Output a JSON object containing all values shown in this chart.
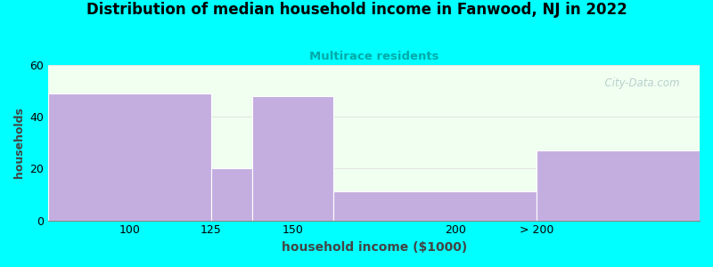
{
  "title": "Distribution of median household income in Fanwood, NJ in 2022",
  "subtitle": "Multirace residents",
  "xlabel": "household income ($1000)",
  "ylabel": "households",
  "bar_edges": [
    75,
    125,
    137.5,
    162.5,
    225,
    275
  ],
  "values": [
    49,
    20,
    48,
    11,
    27
  ],
  "xtick_positions": [
    100,
    125,
    150,
    200,
    225
  ],
  "xtick_labels": [
    "100",
    "125",
    "150",
    "200",
    "> 200"
  ],
  "bar_color": "#c4aee0",
  "bar_edge_color": "#c4aee0",
  "background_color": "#00ffff",
  "plot_bg_top": "#f0fff0",
  "plot_bg_bottom": "#ffffff",
  "subtitle_color": "#00aaaa",
  "title_color": "#000000",
  "ylim": [
    0,
    60
  ],
  "yticks": [
    0,
    20,
    40,
    60
  ],
  "watermark": "  City-Data.com",
  "watermark_color": "#b0c8c8"
}
